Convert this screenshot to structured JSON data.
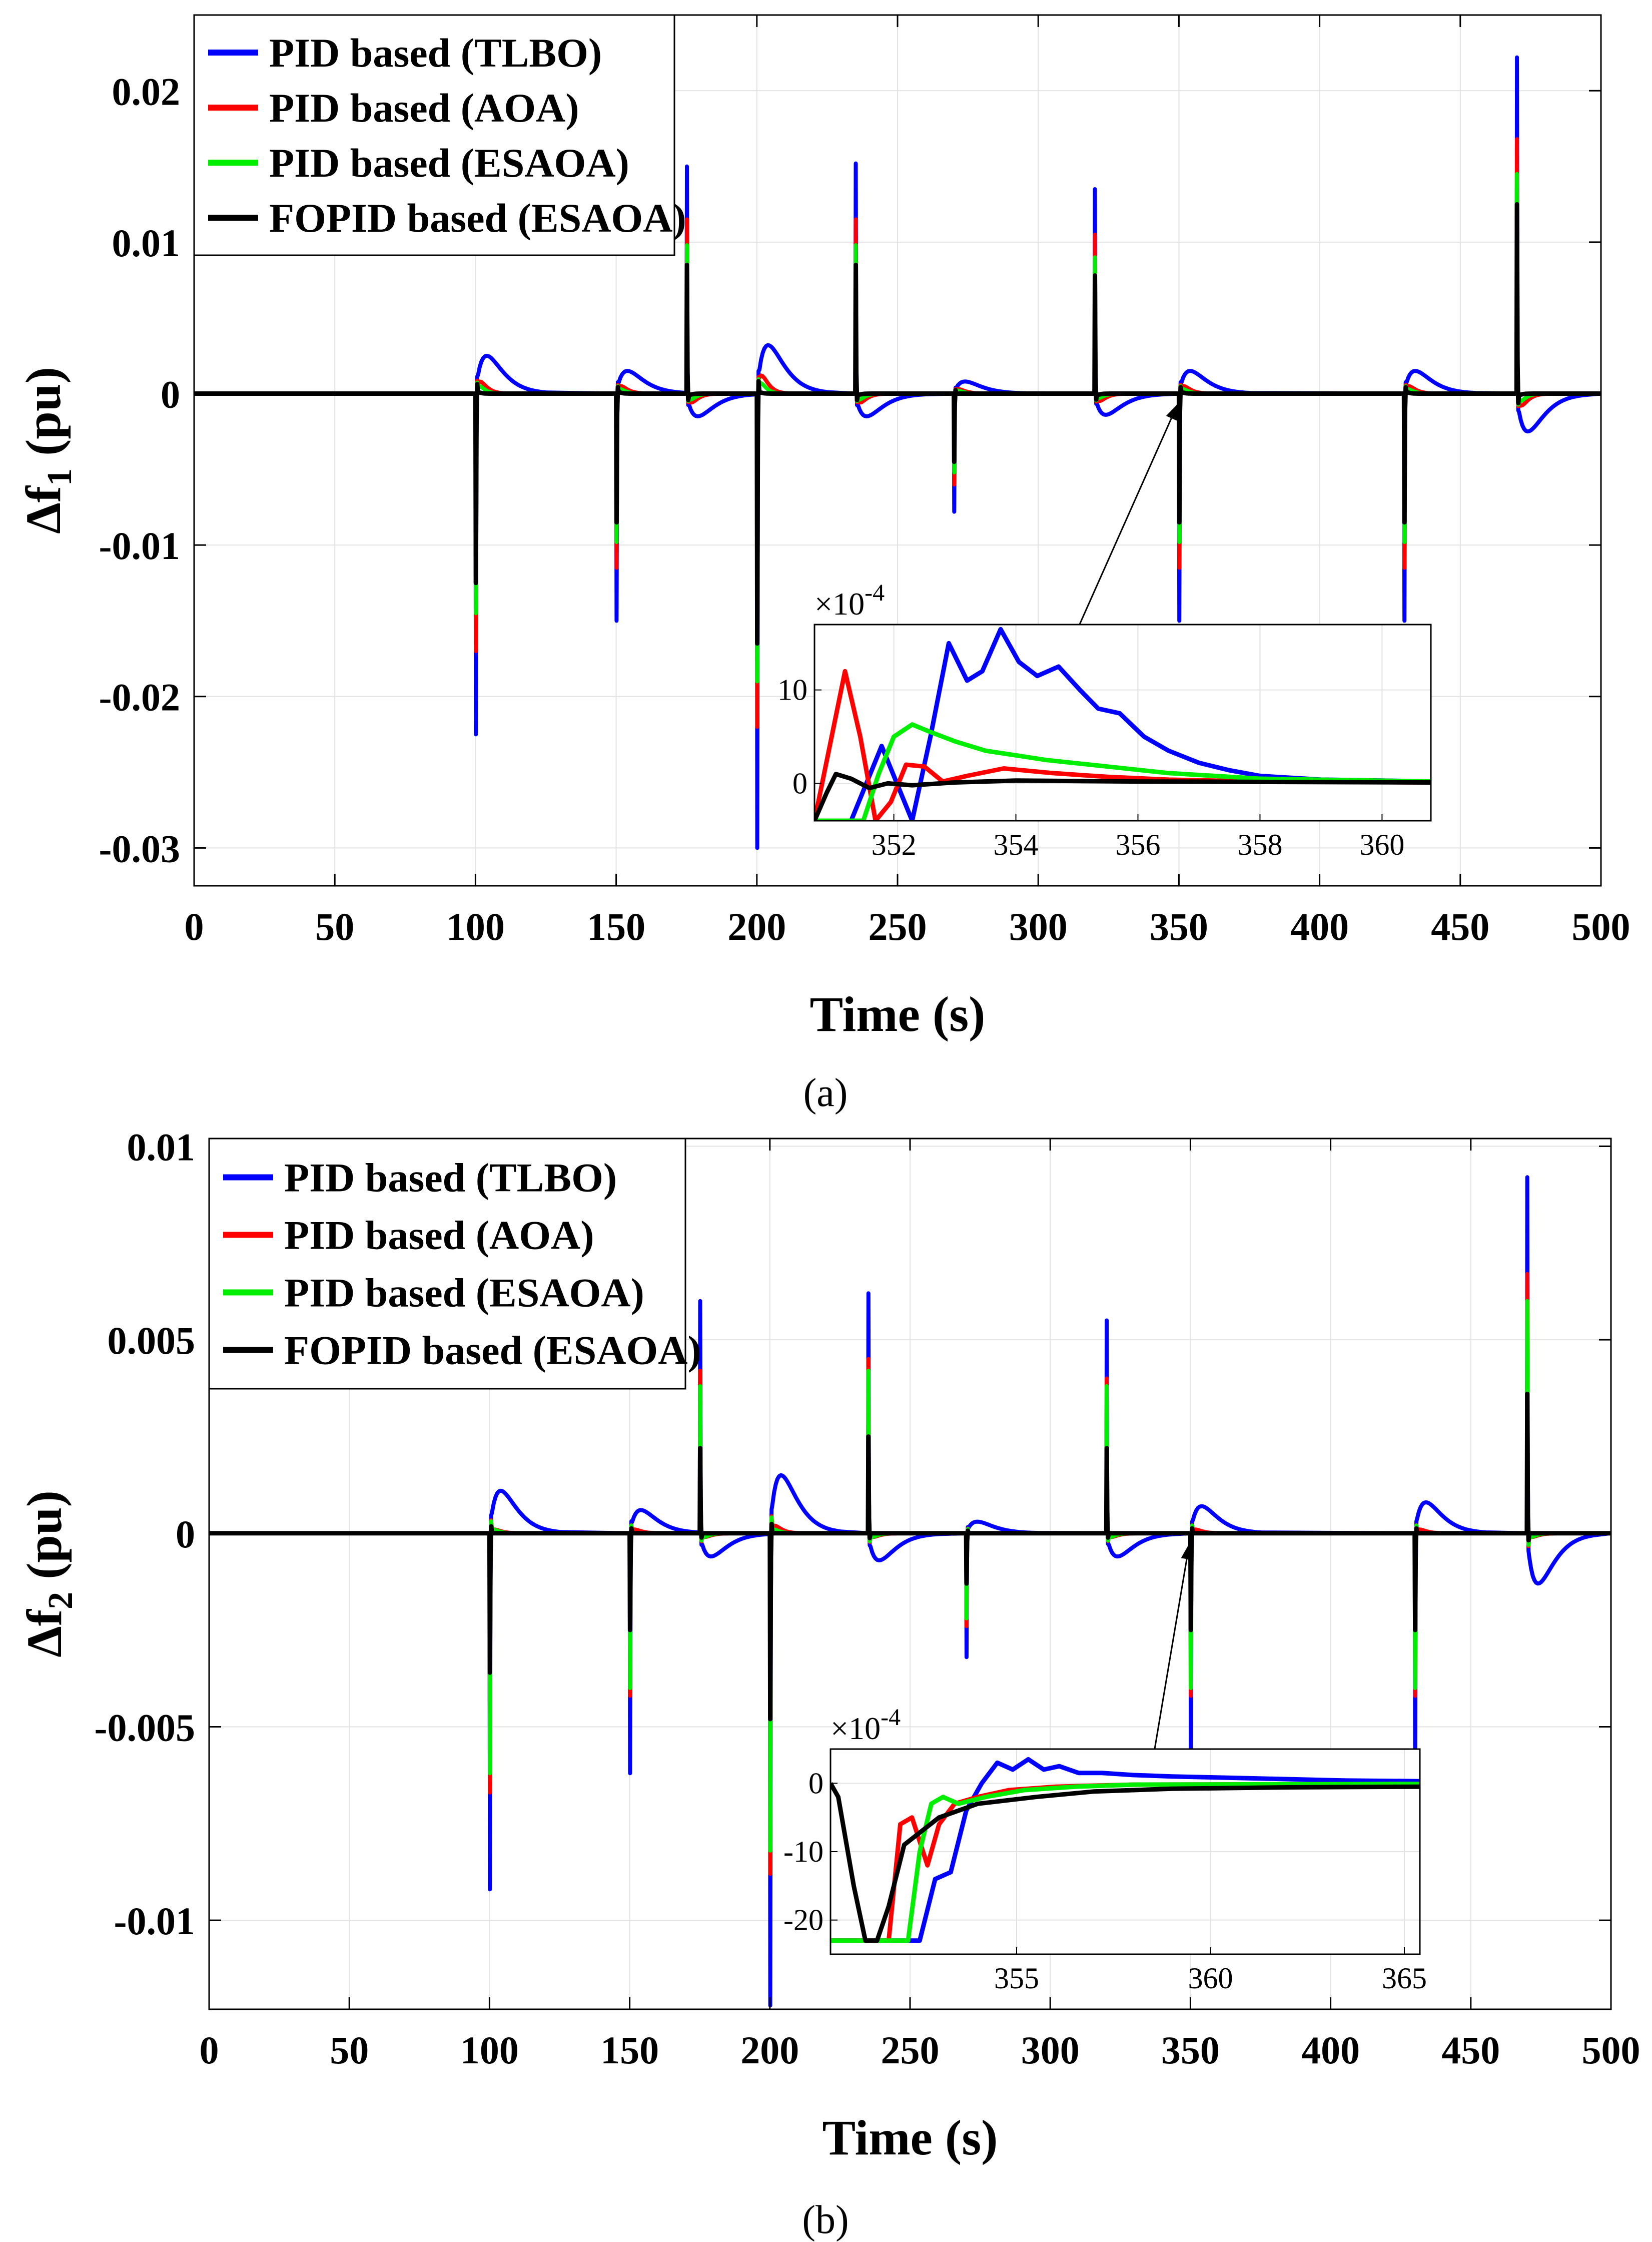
{
  "figure": {
    "caption_a": "(a)",
    "caption_b": "(b)",
    "legend": [
      "PID based (TLBO)",
      "PID based (AOA)",
      "PID based (ESAOA)",
      "FOPID based (ESAOA)"
    ],
    "colors": {
      "TLBO": "#0000ff",
      "AOA": "#ff0000",
      "ESAOA_PID": "#00ee00",
      "FOPID": "#000000"
    }
  },
  "chart_data": [
    {
      "id": "a",
      "type": "line",
      "title": "",
      "xlabel": "Time (s)",
      "ylabel_main": "Δf",
      "ylabel_sub": "1",
      "ylabel_unit": " (pu)",
      "xlim": [
        0,
        500
      ],
      "ylim": [
        -0.0325,
        0.025
      ],
      "xticks": [
        0,
        50,
        100,
        150,
        200,
        250,
        300,
        350,
        400,
        450,
        500
      ],
      "xtick_labels": [
        "0",
        "50",
        "100",
        "150",
        "200",
        "250",
        "300",
        "350",
        "400",
        "450",
        "500"
      ],
      "yticks": [
        -0.03,
        -0.02,
        -0.01,
        0,
        0.01,
        0.02
      ],
      "ytick_labels": [
        "-0.03",
        "-0.02",
        "-0.01",
        "0",
        "0.01",
        "0.02"
      ],
      "grid": true,
      "legend_position": "top-left",
      "disturbance_times": [
        100,
        150,
        175,
        200,
        235,
        270,
        320,
        350,
        430,
        470
      ],
      "spikes": {
        "TLBO": [
          -0.0225,
          -0.015,
          0.015,
          -0.03,
          0.0152,
          -0.0078,
          0.0135,
          -0.015,
          -0.015,
          0.0222
        ],
        "AOA": [
          -0.017,
          -0.0115,
          0.0115,
          -0.022,
          0.0115,
          -0.006,
          0.0105,
          -0.0115,
          -0.0115,
          0.0168
        ],
        "ESAOA_PID": [
          -0.0145,
          -0.0098,
          0.0098,
          -0.019,
          0.0098,
          -0.0052,
          0.009,
          -0.0098,
          -0.0098,
          0.0145
        ],
        "FOPID": [
          -0.0125,
          -0.0085,
          0.0085,
          -0.0165,
          0.0085,
          -0.0045,
          0.0078,
          -0.0085,
          -0.0085,
          0.0125
        ]
      },
      "overshoot": {
        "TLBO": [
          0.0025,
          0.0015,
          -0.0015,
          0.0032,
          -0.0015,
          0.0008,
          -0.0014,
          0.0015,
          0.0015,
          -0.0025
        ],
        "AOA": [
          0.0008,
          0.0005,
          -0.0006,
          0.0012,
          -0.0006,
          0.0003,
          -0.0005,
          0.0005,
          0.0005,
          -0.0008
        ],
        "ESAOA_PID": [
          0.0005,
          0.0003,
          -0.0004,
          0.0007,
          -0.0004,
          0.0002,
          -0.0003,
          0.0003,
          0.0003,
          -0.0005
        ],
        "FOPID": [
          0.0001,
          0.0001,
          -0.0001,
          0.0001,
          -0.0001,
          0.0,
          -0.0001,
          0.0001,
          0.0001,
          -0.0001
        ]
      },
      "inset": {
        "exponent_base": "×10",
        "exponent_power": "-4",
        "xlim": [
          350.7,
          360.8
        ],
        "ylim": [
          -4,
          17
        ],
        "xticks": [
          352,
          354,
          356,
          358,
          360
        ],
        "xtick_labels": [
          "352",
          "354",
          "356",
          "358",
          "360"
        ],
        "yticks": [
          0,
          10
        ],
        "ytick_labels": [
          "0",
          "10"
        ],
        "pointer_target": {
          "x": 350,
          "y": 0
        },
        "series": {
          "TLBO": {
            "x": [
              350.7,
              351.3,
              351.8,
              352.05,
              352.3,
              352.6,
              352.9,
              353.2,
              353.45,
              353.75,
              354.05,
              354.35,
              354.7,
              355.05,
              355.35,
              355.7,
              356.1,
              356.5,
              357.0,
              357.5,
              358.0,
              359.0,
              360.0,
              360.8
            ],
            "y": [
              -4,
              -4,
              4,
              0,
              -4,
              5,
              15,
              11,
              12,
              16.5,
              13,
              11.5,
              12.5,
              10,
              8,
              7.5,
              5,
              3.5,
              2.2,
              1.4,
              0.8,
              0.4,
              0.3,
              0.2
            ]
          },
          "AOA": {
            "x": [
              350.7,
              350.95,
              351.2,
              351.45,
              351.7,
              351.95,
              352.2,
              352.5,
              352.8,
              353.2,
              353.8,
              354.6,
              355.5,
              356.5,
              358,
              360.8
            ],
            "y": [
              -4,
              4,
              12,
              5,
              -4,
              -2,
              2,
              1.8,
              0.2,
              0.8,
              1.6,
              1.1,
              0.7,
              0.4,
              0.2,
              0.1
            ]
          },
          "ESAOA_PID": {
            "x": [
              350.7,
              351.5,
              351.75,
              352.0,
              352.3,
              352.6,
              353.0,
              353.5,
              354.5,
              355.5,
              356.5,
              358,
              360.8
            ],
            "y": [
              -4,
              -4,
              1,
              5,
              6.3,
              5.5,
              4.5,
              3.5,
              2.5,
              1.8,
              1.1,
              0.5,
              0.2
            ]
          },
          "FOPID": {
            "x": [
              350.7,
              350.9,
              351.05,
              351.3,
              351.6,
              351.9,
              352.3,
              353,
              354,
              356,
              360.8
            ],
            "y": [
              -4,
              -1,
              1,
              0.5,
              -0.5,
              0,
              -0.2,
              0.1,
              0.3,
              0.2,
              0.1
            ]
          }
        }
      }
    },
    {
      "id": "b",
      "type": "line",
      "title": "",
      "xlabel": "Time (s)",
      "ylabel_main": "Δf",
      "ylabel_sub": "2",
      "ylabel_unit": " (pu)",
      "xlim": [
        0,
        500
      ],
      "ylim": [
        -0.0123,
        0.0102
      ],
      "xticks": [
        0,
        50,
        100,
        150,
        200,
        250,
        300,
        350,
        400,
        450,
        500
      ],
      "xtick_labels": [
        "0",
        "50",
        "100",
        "150",
        "200",
        "250",
        "300",
        "350",
        "400",
        "450",
        "500"
      ],
      "yticks": [
        -0.01,
        -0.005,
        0,
        0.005,
        0.01
      ],
      "ytick_labels": [
        "-0.01",
        "-0.005",
        "0",
        "0.005",
        "0.01"
      ],
      "grid": true,
      "legend_position": "top-left",
      "disturbance_times": [
        100,
        150,
        175,
        200,
        235,
        270,
        320,
        350,
        430,
        470
      ],
      "spikes": {
        "TLBO": [
          -0.0092,
          -0.0062,
          0.006,
          -0.0122,
          0.0062,
          -0.0032,
          0.0055,
          -0.006,
          -0.0062,
          0.0092
        ],
        "AOA": [
          -0.0067,
          -0.0042,
          0.0042,
          -0.0088,
          0.0045,
          -0.0024,
          0.004,
          -0.0042,
          -0.0042,
          0.0067
        ],
        "ESAOA_PID": [
          -0.0062,
          -0.004,
          0.0038,
          -0.0082,
          0.0042,
          -0.0022,
          0.0038,
          -0.004,
          -0.004,
          0.006
        ],
        "FOPID": [
          -0.0036,
          -0.0025,
          0.0022,
          -0.0048,
          0.0025,
          -0.0013,
          0.0022,
          -0.0025,
          -0.0025,
          0.0036
        ]
      },
      "overshoot": {
        "TLBO": [
          0.0011,
          0.0006,
          -0.0006,
          0.0015,
          -0.0007,
          0.0003,
          -0.0006,
          0.0007,
          0.0008,
          -0.0013
        ],
        "AOA": [
          0.0001,
          0.0001,
          -0.0001,
          0.0002,
          -0.0001,
          0.0,
          -0.0001,
          0.0001,
          0.0001,
          -0.0001
        ],
        "ESAOA_PID": [
          0.0001,
          0.0,
          -0.0001,
          0.0001,
          -0.0001,
          0.0,
          -0.0001,
          0.0,
          0.0,
          -0.0001
        ],
        "FOPID": [
          0.0,
          0.0,
          0.0,
          0.0,
          0.0,
          0.0,
          0.0,
          0.0,
          0.0,
          0.0
        ]
      },
      "inset": {
        "exponent_base": "×10",
        "exponent_power": "-4",
        "xlim": [
          350.2,
          365.4
        ],
        "ylim": [
          -25,
          5
        ],
        "xticks": [
          355,
          360,
          365
        ],
        "xtick_labels": [
          "355",
          "360",
          "365"
        ],
        "yticks": [
          -20,
          -10,
          0
        ],
        "ytick_labels": [
          "-20",
          "-10",
          "0"
        ],
        "pointer_target": {
          "x": 350,
          "y": 0
        },
        "series": {
          "TLBO": {
            "x": [
              350.2,
              352.5,
              352.9,
              353.3,
              353.7,
              354.1,
              354.5,
              354.9,
              355.3,
              355.7,
              356.1,
              356.6,
              357.2,
              358,
              359,
              360.5,
              362,
              363.5,
              365.4
            ],
            "y": [
              -23,
              -23,
              -14,
              -13,
              -4,
              0,
              3,
              2,
              3.5,
              2,
              2.5,
              1.5,
              1.5,
              1.2,
              1.0,
              0.8,
              0.6,
              0.4,
              0.3
            ]
          },
          "AOA": {
            "x": [
              350.2,
              351.7,
              352.0,
              352.3,
              352.7,
              353.0,
              353.4,
              354.0,
              354.8,
              356,
              358,
              365.4
            ],
            "y": [
              -23,
              -23,
              -6,
              -5,
              -12,
              -6,
              -3,
              -2,
              -1,
              -0.5,
              -0.2,
              -0.1
            ]
          },
          "ESAOA_PID": {
            "x": [
              350.2,
              352.2,
              352.5,
              352.8,
              353.1,
              353.5,
              354.2,
              355.2,
              356.5,
              358,
              365.4
            ],
            "y": [
              -23,
              -23,
              -10,
              -3,
              -2,
              -3,
              -2,
              -1,
              -0.5,
              -0.2,
              -0.1
            ]
          },
          "FOPID": {
            "x": [
              350.2,
              350.4,
              350.8,
              351.1,
              351.4,
              351.7,
              352.1,
              353.0,
              354.0,
              355.5,
              357,
              359,
              362,
              365.4
            ],
            "y": [
              0,
              -2,
              -15,
              -23,
              -23,
              -18,
              -9,
              -5,
              -3,
              -2,
              -1.2,
              -0.8,
              -0.6,
              -0.5
            ]
          }
        }
      }
    }
  ]
}
